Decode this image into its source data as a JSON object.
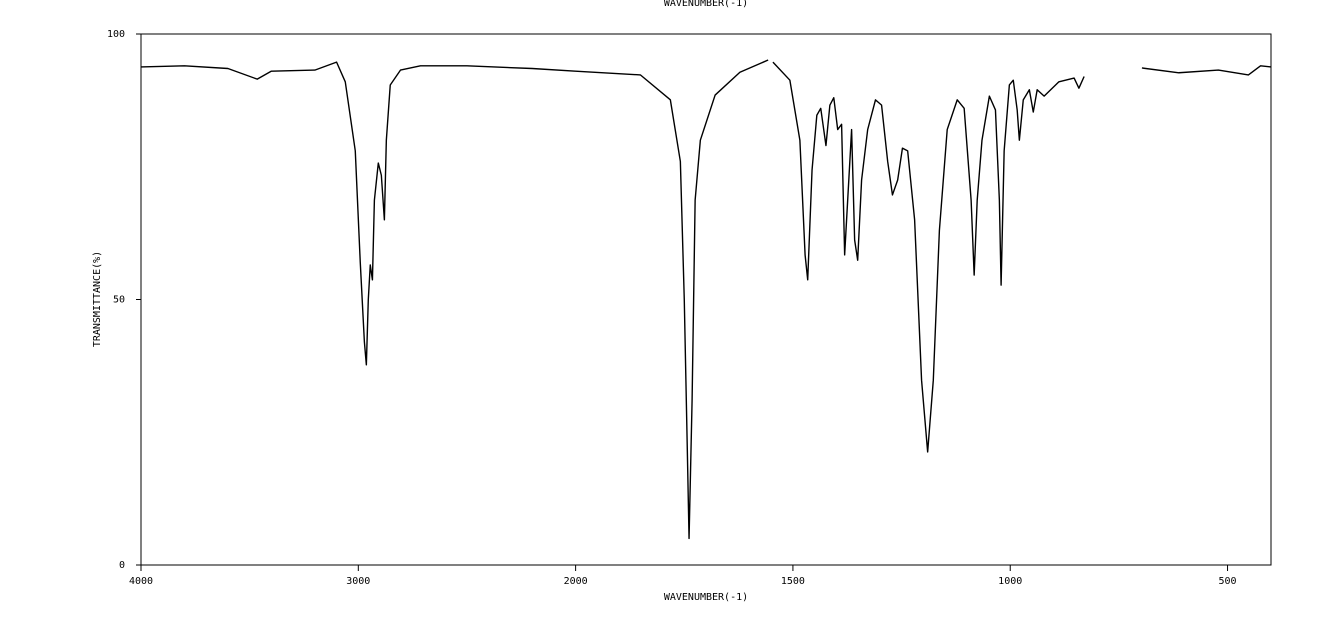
{
  "chart_data": {
    "type": "line",
    "title": "WAVENUMBER(-1)",
    "x_label": "WAVENUMBER(-1)",
    "y_label": "TRANSMITTANCE(%)",
    "color": "#000000",
    "xlim": [
      4000,
      400
    ],
    "x_scale_change": {
      "at": 2000,
      "factor": 2
    },
    "xticks": [
      4000,
      3000,
      2000,
      1500,
      1000,
      500
    ],
    "ylim": [
      0,
      100
    ],
    "yticks": [
      0,
      50,
      100
    ],
    "x": [
      4000,
      3800,
      3600,
      3465,
      3400,
      3200,
      3100,
      3060,
      3014,
      2991,
      2972,
      2963,
      2954,
      2945,
      2935,
      2926,
      2908,
      2894,
      2880,
      2871,
      2853,
      2806,
      2714,
      2500,
      2200,
      2000,
      1851,
      1782,
      1759,
      1750,
      1743,
      1739,
      1732,
      1725,
      1713,
      1679,
      1622,
      1557,
      1552,
      1546,
      1507,
      1484,
      1472,
      1466,
      1456,
      1445,
      1436,
      1424,
      1415,
      1406,
      1397,
      1388,
      1381,
      1374,
      1365,
      1358,
      1351,
      1342,
      1328,
      1310,
      1296,
      1282,
      1271,
      1259,
      1248,
      1236,
      1220,
      1204,
      1190,
      1177,
      1163,
      1145,
      1122,
      1106,
      1090,
      1083,
      1076,
      1065,
      1048,
      1034,
      1025,
      1021,
      1014,
      1002,
      993,
      984,
      979,
      970,
      956,
      947,
      938,
      922,
      888,
      853,
      842,
      830,
      765,
      697,
      612,
      521,
      452,
      424,
      400
    ],
    "values": [
      93.8,
      94,
      93.5,
      91.5,
      93,
      93.2,
      94.7,
      91,
      78,
      57,
      42,
      37.7,
      50,
      56.5,
      53.7,
      68.7,
      75.7,
      73.4,
      65,
      80,
      90.4,
      93.2,
      94,
      94,
      93.5,
      93,
      92.3,
      87.6,
      76,
      50,
      21.7,
      5,
      31,
      68.7,
      80,
      88.5,
      92.8,
      95.1,
      null,
      94.7,
      91.3,
      80,
      58.4,
      53.7,
      74.4,
      84.7,
      86,
      79,
      86.6,
      88,
      82,
      83,
      58.4,
      68.7,
      82,
      61.2,
      57.4,
      72.5,
      82,
      87.6,
      86.6,
      76,
      69.7,
      72.5,
      78.5,
      78,
      65,
      34.8,
      21.3,
      34.8,
      63,
      82,
      87.6,
      86,
      68.7,
      54.6,
      68.7,
      80,
      88.3,
      85.7,
      68.7,
      52.7,
      78,
      90.4,
      91.3,
      85.7,
      80,
      87.6,
      89.5,
      85.3,
      89.5,
      88.3,
      91,
      91.7,
      89.8,
      92,
      null,
      93.6,
      92.7,
      93.2,
      92.3,
      94,
      93.8
    ]
  }
}
